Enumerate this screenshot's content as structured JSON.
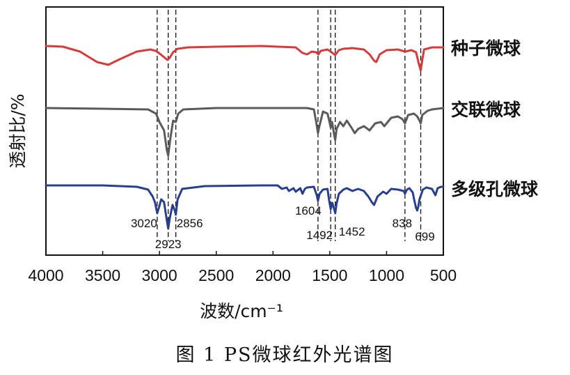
{
  "chart_data": {
    "type": "line",
    "title": "",
    "caption": "图 1 PS微球红外光谱图",
    "xlabel": "波数/cm⁻¹",
    "ylabel": "透射比/%",
    "xlim": [
      4000,
      500
    ],
    "x_reversed": true,
    "x_ticks": [
      "4000",
      "3500",
      "3000",
      "2500",
      "2000",
      "1500",
      "1000",
      "500"
    ],
    "y_ticks_shown": false,
    "grid": false,
    "legend_placement": "right of curves",
    "reference_lines": [
      3020,
      2923,
      2856,
      1604,
      1492,
      1452,
      838,
      699
    ],
    "peak_labels": [
      {
        "x": 3020,
        "text": "3020"
      },
      {
        "x": 2923,
        "text": "2923"
      },
      {
        "x": 2856,
        "text": "2856"
      },
      {
        "x": 1604,
        "text": "1604"
      },
      {
        "x": 1492,
        "text": "1492"
      },
      {
        "x": 1452,
        "text": "1452"
      },
      {
        "x": 838,
        "text": "838"
      },
      {
        "x": 699,
        "text": "699"
      }
    ],
    "series": [
      {
        "name": "种子微球",
        "color": "#d63b3b",
        "points": [
          [
            4000,
            0
          ],
          [
            3850,
            -1
          ],
          [
            3700,
            -8
          ],
          [
            3550,
            -23
          ],
          [
            3450,
            -27
          ],
          [
            3350,
            -19
          ],
          [
            3200,
            -8
          ],
          [
            3080,
            -5
          ],
          [
            3030,
            -7
          ],
          [
            2990,
            -12
          ],
          [
            2960,
            -16
          ],
          [
            2930,
            -20
          ],
          [
            2910,
            -17
          ],
          [
            2880,
            -9
          ],
          [
            2840,
            -4
          ],
          [
            2750,
            -2
          ],
          [
            2500,
            -1
          ],
          [
            2100,
            0
          ],
          [
            1800,
            -2
          ],
          [
            1740,
            -10
          ],
          [
            1700,
            -12
          ],
          [
            1660,
            -8
          ],
          [
            1620,
            -9
          ],
          [
            1600,
            -12
          ],
          [
            1580,
            -7
          ],
          [
            1520,
            -5
          ],
          [
            1492,
            -8
          ],
          [
            1460,
            -12
          ],
          [
            1452,
            -13
          ],
          [
            1420,
            -6
          ],
          [
            1380,
            -4
          ],
          [
            1300,
            -3
          ],
          [
            1200,
            -5
          ],
          [
            1150,
            -12
          ],
          [
            1110,
            -21
          ],
          [
            1090,
            -23
          ],
          [
            1060,
            -12
          ],
          [
            1000,
            -6
          ],
          [
            900,
            -5
          ],
          [
            838,
            -8
          ],
          [
            780,
            -6
          ],
          [
            740,
            -9
          ],
          [
            715,
            -26
          ],
          [
            699,
            -35
          ],
          [
            685,
            -20
          ],
          [
            670,
            -5
          ],
          [
            600,
            -2
          ],
          [
            500,
            -2
          ]
        ]
      },
      {
        "name": "交联微球",
        "color": "#5a5a5a",
        "points": [
          [
            4000,
            0
          ],
          [
            3500,
            -1
          ],
          [
            3100,
            -2
          ],
          [
            3030,
            -8
          ],
          [
            3000,
            -20
          ],
          [
            2960,
            -32
          ],
          [
            2935,
            -60
          ],
          [
            2923,
            -68
          ],
          [
            2905,
            -45
          ],
          [
            2880,
            -18
          ],
          [
            2856,
            -20
          ],
          [
            2835,
            -8
          ],
          [
            2790,
            -2
          ],
          [
            2500,
            0
          ],
          [
            2000,
            0
          ],
          [
            1700,
            0
          ],
          [
            1640,
            -2
          ],
          [
            1620,
            -20
          ],
          [
            1604,
            -36
          ],
          [
            1590,
            -25
          ],
          [
            1560,
            -5
          ],
          [
            1520,
            -8
          ],
          [
            1500,
            -22
          ],
          [
            1492,
            -28
          ],
          [
            1480,
            -20
          ],
          [
            1460,
            -40
          ],
          [
            1452,
            -46
          ],
          [
            1440,
            -30
          ],
          [
            1410,
            -20
          ],
          [
            1380,
            -26
          ],
          [
            1350,
            -18
          ],
          [
            1310,
            -28
          ],
          [
            1280,
            -36
          ],
          [
            1250,
            -30
          ],
          [
            1200,
            -26
          ],
          [
            1150,
            -32
          ],
          [
            1100,
            -22
          ],
          [
            1050,
            -20
          ],
          [
            1020,
            -26
          ],
          [
            960,
            -14
          ],
          [
            900,
            -12
          ],
          [
            860,
            -16
          ],
          [
            838,
            -22
          ],
          [
            810,
            -10
          ],
          [
            760,
            -8
          ],
          [
            730,
            -12
          ],
          [
            710,
            -18
          ],
          [
            699,
            -22
          ],
          [
            685,
            -10
          ],
          [
            640,
            -4
          ],
          [
            600,
            -2
          ],
          [
            500,
            0
          ]
        ]
      },
      {
        "name": "多级孔微球",
        "color": "#283f8f",
        "points": [
          [
            4000,
            0
          ],
          [
            3500,
            0
          ],
          [
            3200,
            -2
          ],
          [
            3100,
            -6
          ],
          [
            3060,
            -16
          ],
          [
            3040,
            -24
          ],
          [
            3020,
            -40
          ],
          [
            3005,
            -32
          ],
          [
            2985,
            -20
          ],
          [
            2960,
            -24
          ],
          [
            2935,
            -50
          ],
          [
            2923,
            -62
          ],
          [
            2910,
            -48
          ],
          [
            2885,
            -28
          ],
          [
            2865,
            -36
          ],
          [
            2856,
            -42
          ],
          [
            2840,
            -20
          ],
          [
            2800,
            -5
          ],
          [
            2600,
            -1
          ],
          [
            2100,
            0
          ],
          [
            1960,
            0
          ],
          [
            1920,
            -5
          ],
          [
            1880,
            -3
          ],
          [
            1860,
            -8
          ],
          [
            1820,
            -4
          ],
          [
            1800,
            -9
          ],
          [
            1760,
            -4
          ],
          [
            1740,
            -12
          ],
          [
            1720,
            -5
          ],
          [
            1700,
            -3
          ],
          [
            1640,
            -2
          ],
          [
            1615,
            -14
          ],
          [
            1604,
            -22
          ],
          [
            1590,
            -12
          ],
          [
            1560,
            -6
          ],
          [
            1520,
            -5
          ],
          [
            1505,
            -22
          ],
          [
            1492,
            -34
          ],
          [
            1478,
            -25
          ],
          [
            1465,
            -32
          ],
          [
            1452,
            -40
          ],
          [
            1440,
            -26
          ],
          [
            1420,
            -12
          ],
          [
            1380,
            -6
          ],
          [
            1350,
            -4
          ],
          [
            1300,
            -8
          ],
          [
            1250,
            -5
          ],
          [
            1200,
            -8
          ],
          [
            1160,
            -16
          ],
          [
            1130,
            -24
          ],
          [
            1110,
            -28
          ],
          [
            1080,
            -16
          ],
          [
            1030,
            -9
          ],
          [
            1000,
            -12
          ],
          [
            960,
            -5
          ],
          [
            900,
            -6
          ],
          [
            850,
            -8
          ],
          [
            838,
            -12
          ],
          [
            820,
            -6
          ],
          [
            800,
            -4
          ],
          [
            770,
            -10
          ],
          [
            755,
            -22
          ],
          [
            740,
            -32
          ],
          [
            730,
            -36
          ],
          [
            720,
            -30
          ],
          [
            710,
            -20
          ],
          [
            699,
            -15
          ],
          [
            680,
            -6
          ],
          [
            650,
            -3
          ],
          [
            600,
            -5
          ],
          [
            570,
            -14
          ],
          [
            550,
            -4
          ],
          [
            520,
            -2
          ],
          [
            500,
            -2
          ]
        ]
      }
    ]
  }
}
